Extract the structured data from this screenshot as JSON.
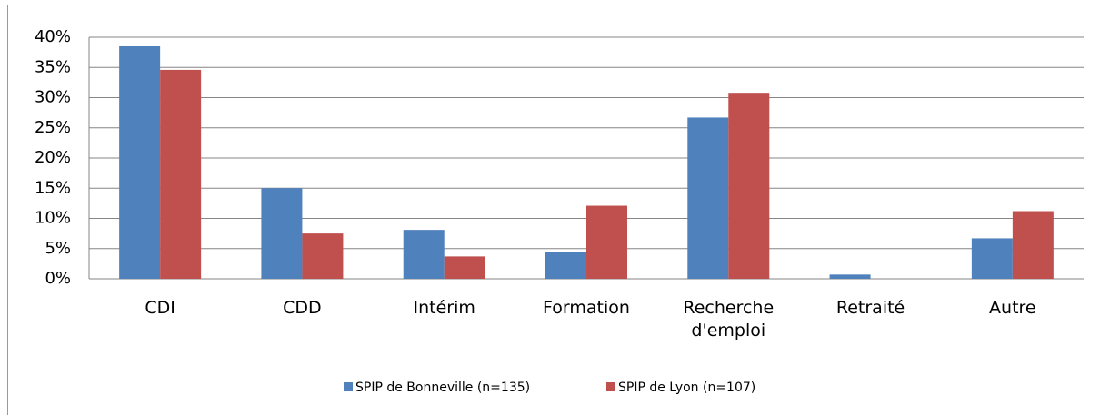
{
  "chart_data": {
    "type": "bar",
    "categories": [
      "CDI",
      "CDD",
      "Intérim",
      "Formation",
      "Recherche d'emploi",
      "Retraité",
      "Autre"
    ],
    "series": [
      {
        "name": "SPIP de Bonneville (n=135)",
        "color": "#4f81bd",
        "values": [
          38.5,
          15.0,
          8.1,
          4.4,
          26.7,
          0.7,
          6.7
        ]
      },
      {
        "name": "SPIP de Lyon (n=107)",
        "color": "#c0504d",
        "values": [
          34.6,
          7.5,
          3.7,
          12.1,
          30.8,
          0,
          11.2
        ]
      }
    ],
    "ylim": [
      0,
      40
    ],
    "yticks": [
      {
        "value": 0,
        "label": "0%"
      },
      {
        "value": 5,
        "label": "5%"
      },
      {
        "value": 10,
        "label": "10%"
      },
      {
        "value": 15,
        "label": "15%"
      },
      {
        "value": 20,
        "label": "20%"
      },
      {
        "value": 25,
        "label": "25%"
      },
      {
        "value": 30,
        "label": "30%"
      },
      {
        "value": 35,
        "label": "35%"
      },
      {
        "value": 40,
        "label": "40%"
      }
    ],
    "grid": true,
    "legend": "bottom"
  }
}
